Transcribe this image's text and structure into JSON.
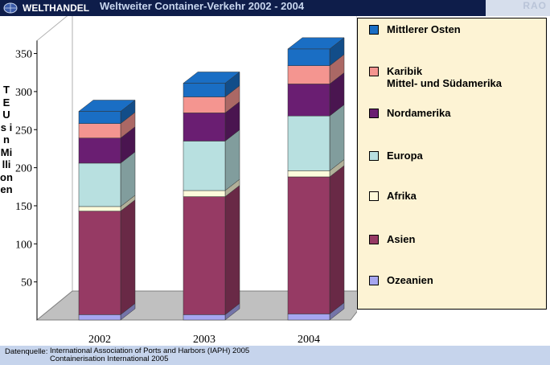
{
  "header": {
    "brand": "WELTHANDEL",
    "title": "Weltweiter Container-Verkehr 2002 - 2004",
    "logo_text": "RAO"
  },
  "colors": {
    "header_bg": "#0e1d4a",
    "footer_bg": "#c6d4ec",
    "legend_bg": "#fdf3d4"
  },
  "chart_data": {
    "type": "bar",
    "stacked": true,
    "three_d": true,
    "categories": [
      "2002",
      "2003",
      "2004"
    ],
    "ylabel": "TEUs in Millionen",
    "yticks": [
      50,
      100,
      150,
      200,
      250,
      300,
      350
    ],
    "ylim": [
      0,
      350
    ],
    "grid": false,
    "legend_position": "right",
    "series": [
      {
        "name": "Ozeanien",
        "color": "#a6a6f0",
        "values": [
          7,
          7,
          8
        ]
      },
      {
        "name": "Asien",
        "color": "#963a64",
        "values": [
          136,
          155,
          180
        ]
      },
      {
        "name": "Afrika",
        "color": "#fdfbdb",
        "values": [
          6,
          8,
          8
        ]
      },
      {
        "name": "Europa",
        "color": "#b8e0e0",
        "values": [
          57,
          65,
          72
        ]
      },
      {
        "name": "Nordamerika",
        "color": "#6a1e72",
        "values": [
          33,
          37,
          42
        ]
      },
      {
        "name": "Karibik\nMittel- und Südamerika",
        "color": "#f49590",
        "values": [
          19,
          21,
          24
        ]
      },
      {
        "name": "Mittlerer Osten",
        "color": "#1a6ec4",
        "values": [
          16,
          18,
          22
        ]
      }
    ]
  },
  "legend": [
    {
      "label": "Mittlerer Osten",
      "color": "#1a6ec4"
    },
    {
      "label": "Karibik\nMittel- und Südamerika",
      "color": "#f49590"
    },
    {
      "label": "Nordamerika",
      "color": "#6a1e72"
    },
    {
      "label": "Europa",
      "color": "#b8e0e0"
    },
    {
      "label": "Afrika",
      "color": "#fdfbdb"
    },
    {
      "label": "Asien",
      "color": "#963a64"
    },
    {
      "label": "Ozeanien",
      "color": "#a6a6f0"
    }
  ],
  "footer": {
    "label": "Datenquelle:",
    "line1": "International Association of Ports and Harbors (IAPH) 2005",
    "line2": "Containerisation International 2005"
  }
}
